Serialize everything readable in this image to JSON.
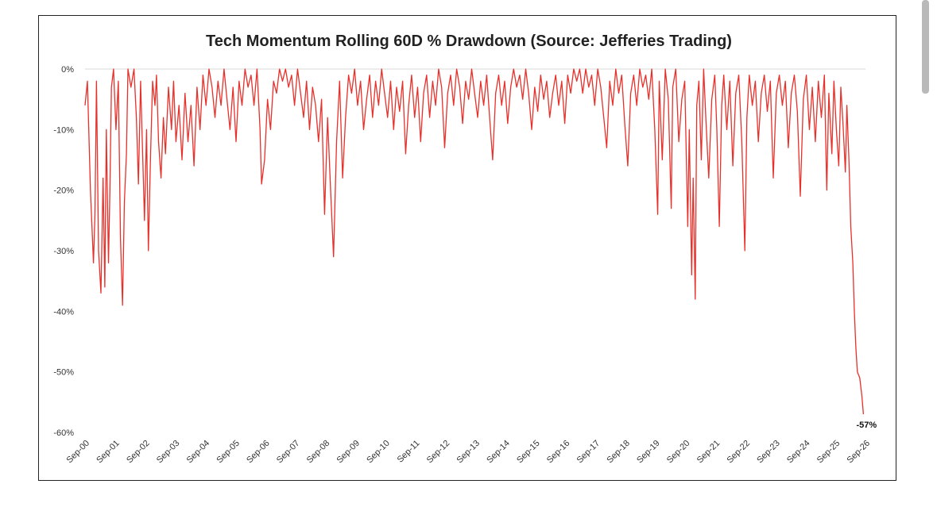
{
  "chart_data": {
    "type": "line",
    "title": "Tech Momentum Rolling 60D % Drawdown (Source: Jefferies Trading)",
    "xlabel": "",
    "ylabel": "",
    "ylim": [
      -60,
      0
    ],
    "y_ticks": [
      "0%",
      "-10%",
      "-20%",
      "-30%",
      "-40%",
      "-50%",
      "-60%"
    ],
    "y_tick_values": [
      0,
      -10,
      -20,
      -30,
      -40,
      -50,
      -60
    ],
    "x_ticks": [
      "Sep-00",
      "Sep-01",
      "Sep-02",
      "Sep-03",
      "Sep-04",
      "Sep-05",
      "Sep-06",
      "Sep-07",
      "Sep-08",
      "Sep-09",
      "Sep-10",
      "Sep-11",
      "Sep-12",
      "Sep-13",
      "Sep-14",
      "Sep-15",
      "Sep-16",
      "Sep-17",
      "Sep-18",
      "Sep-19",
      "Sep-20",
      "Sep-21",
      "Sep-22",
      "Sep-23",
      "Sep-24",
      "Sep-25",
      "Sep-26"
    ],
    "grid": false,
    "legend": "none",
    "series_color": "#e8302a",
    "x_range": [
      2000.67,
      2026.67
    ],
    "annotation": {
      "text": "-57%",
      "x": 2026.6,
      "y": -57
    },
    "series": [
      {
        "values": [
          [
            2000.67,
            -6
          ],
          [
            2000.75,
            -2
          ],
          [
            2000.85,
            -20
          ],
          [
            2000.95,
            -32
          ],
          [
            2001.0,
            -24
          ],
          [
            2001.05,
            -2
          ],
          [
            2001.12,
            -30
          ],
          [
            2001.2,
            -37
          ],
          [
            2001.27,
            -18
          ],
          [
            2001.33,
            -36
          ],
          [
            2001.38,
            -10
          ],
          [
            2001.45,
            -32
          ],
          [
            2001.5,
            -20
          ],
          [
            2001.55,
            -3
          ],
          [
            2001.62,
            0
          ],
          [
            2001.7,
            -10
          ],
          [
            2001.78,
            -2
          ],
          [
            2001.85,
            -28
          ],
          [
            2001.92,
            -39
          ],
          [
            2001.98,
            -22
          ],
          [
            2002.05,
            -14
          ],
          [
            2002.1,
            0
          ],
          [
            2002.2,
            -3
          ],
          [
            2002.3,
            0
          ],
          [
            2002.38,
            -8
          ],
          [
            2002.45,
            -19
          ],
          [
            2002.52,
            -2
          ],
          [
            2002.6,
            -16
          ],
          [
            2002.65,
            -25
          ],
          [
            2002.72,
            -10
          ],
          [
            2002.78,
            -30
          ],
          [
            2002.85,
            -15
          ],
          [
            2002.92,
            -2
          ],
          [
            2003.0,
            -6
          ],
          [
            2003.05,
            -1
          ],
          [
            2003.12,
            -12
          ],
          [
            2003.2,
            -18
          ],
          [
            2003.28,
            -8
          ],
          [
            2003.35,
            -14
          ],
          [
            2003.45,
            -3
          ],
          [
            2003.55,
            -10
          ],
          [
            2003.62,
            -2
          ],
          [
            2003.7,
            -12
          ],
          [
            2003.8,
            -6
          ],
          [
            2003.9,
            -15
          ],
          [
            2004.0,
            -4
          ],
          [
            2004.1,
            -12
          ],
          [
            2004.2,
            -6
          ],
          [
            2004.3,
            -16
          ],
          [
            2004.4,
            -3
          ],
          [
            2004.5,
            -10
          ],
          [
            2004.6,
            -1
          ],
          [
            2004.7,
            -6
          ],
          [
            2004.8,
            0
          ],
          [
            2004.9,
            -3
          ],
          [
            2005.0,
            -8
          ],
          [
            2005.1,
            -2
          ],
          [
            2005.2,
            -6
          ],
          [
            2005.3,
            0
          ],
          [
            2005.4,
            -5
          ],
          [
            2005.5,
            -10
          ],
          [
            2005.6,
            -3
          ],
          [
            2005.7,
            -12
          ],
          [
            2005.8,
            -2
          ],
          [
            2005.9,
            -6
          ],
          [
            2006.0,
            0
          ],
          [
            2006.1,
            -3
          ],
          [
            2006.2,
            -1
          ],
          [
            2006.3,
            -6
          ],
          [
            2006.4,
            0
          ],
          [
            2006.5,
            -10
          ],
          [
            2006.55,
            -19
          ],
          [
            2006.65,
            -15
          ],
          [
            2006.75,
            -5
          ],
          [
            2006.85,
            -10
          ],
          [
            2006.95,
            -2
          ],
          [
            2007.05,
            -4
          ],
          [
            2007.15,
            0
          ],
          [
            2007.25,
            -2
          ],
          [
            2007.35,
            0
          ],
          [
            2007.45,
            -3
          ],
          [
            2007.55,
            -1
          ],
          [
            2007.65,
            -6
          ],
          [
            2007.75,
            0
          ],
          [
            2007.85,
            -4
          ],
          [
            2007.95,
            -8
          ],
          [
            2008.05,
            -2
          ],
          [
            2008.15,
            -10
          ],
          [
            2008.25,
            -3
          ],
          [
            2008.35,
            -6
          ],
          [
            2008.45,
            -12
          ],
          [
            2008.55,
            -5
          ],
          [
            2008.65,
            -24
          ],
          [
            2008.75,
            -8
          ],
          [
            2008.85,
            -20
          ],
          [
            2008.95,
            -31
          ],
          [
            2009.05,
            -12
          ],
          [
            2009.15,
            -2
          ],
          [
            2009.25,
            -18
          ],
          [
            2009.35,
            -8
          ],
          [
            2009.45,
            -1
          ],
          [
            2009.55,
            -4
          ],
          [
            2009.65,
            0
          ],
          [
            2009.75,
            -6
          ],
          [
            2009.85,
            -2
          ],
          [
            2009.95,
            -10
          ],
          [
            2010.05,
            -5
          ],
          [
            2010.15,
            -1
          ],
          [
            2010.25,
            -8
          ],
          [
            2010.35,
            -2
          ],
          [
            2010.45,
            -6
          ],
          [
            2010.55,
            0
          ],
          [
            2010.65,
            -4
          ],
          [
            2010.75,
            -8
          ],
          [
            2010.85,
            -2
          ],
          [
            2010.95,
            -10
          ],
          [
            2011.05,
            -3
          ],
          [
            2011.15,
            -7
          ],
          [
            2011.25,
            -2
          ],
          [
            2011.35,
            -14
          ],
          [
            2011.45,
            -6
          ],
          [
            2011.55,
            -1
          ],
          [
            2011.65,
            -8
          ],
          [
            2011.75,
            -3
          ],
          [
            2011.85,
            -12
          ],
          [
            2011.95,
            -4
          ],
          [
            2012.05,
            -1
          ],
          [
            2012.15,
            -8
          ],
          [
            2012.25,
            -2
          ],
          [
            2012.35,
            -6
          ],
          [
            2012.45,
            0
          ],
          [
            2012.55,
            -3
          ],
          [
            2012.65,
            -13
          ],
          [
            2012.75,
            -4
          ],
          [
            2012.85,
            -1
          ],
          [
            2012.95,
            -6
          ],
          [
            2013.05,
            0
          ],
          [
            2013.15,
            -3
          ],
          [
            2013.25,
            -9
          ],
          [
            2013.35,
            -2
          ],
          [
            2013.45,
            -5
          ],
          [
            2013.55,
            0
          ],
          [
            2013.65,
            -4
          ],
          [
            2013.75,
            -8
          ],
          [
            2013.85,
            -2
          ],
          [
            2013.95,
            -6
          ],
          [
            2014.05,
            -1
          ],
          [
            2014.15,
            -8
          ],
          [
            2014.25,
            -15
          ],
          [
            2014.35,
            -4
          ],
          [
            2014.45,
            -1
          ],
          [
            2014.55,
            -6
          ],
          [
            2014.65,
            -2
          ],
          [
            2014.75,
            -9
          ],
          [
            2014.85,
            -3
          ],
          [
            2014.95,
            0
          ],
          [
            2015.05,
            -3
          ],
          [
            2015.15,
            -1
          ],
          [
            2015.25,
            -5
          ],
          [
            2015.35,
            0
          ],
          [
            2015.45,
            -4
          ],
          [
            2015.55,
            -10
          ],
          [
            2015.65,
            -3
          ],
          [
            2015.75,
            -7
          ],
          [
            2015.85,
            -1
          ],
          [
            2015.95,
            -5
          ],
          [
            2016.05,
            -2
          ],
          [
            2016.15,
            -8
          ],
          [
            2016.25,
            -4
          ],
          [
            2016.35,
            -1
          ],
          [
            2016.45,
            -6
          ],
          [
            2016.55,
            -2
          ],
          [
            2016.65,
            -9
          ],
          [
            2016.75,
            -1
          ],
          [
            2016.85,
            -4
          ],
          [
            2016.95,
            0
          ],
          [
            2017.05,
            -2
          ],
          [
            2017.15,
            0
          ],
          [
            2017.25,
            -4
          ],
          [
            2017.35,
            0
          ],
          [
            2017.45,
            -3
          ],
          [
            2017.55,
            -1
          ],
          [
            2017.65,
            -6
          ],
          [
            2017.75,
            0
          ],
          [
            2017.85,
            -3
          ],
          [
            2017.95,
            -8
          ],
          [
            2018.05,
            -13
          ],
          [
            2018.15,
            -2
          ],
          [
            2018.25,
            -6
          ],
          [
            2018.35,
            0
          ],
          [
            2018.45,
            -4
          ],
          [
            2018.55,
            -1
          ],
          [
            2018.65,
            -9
          ],
          [
            2018.75,
            -16
          ],
          [
            2018.85,
            -4
          ],
          [
            2018.95,
            -1
          ],
          [
            2019.05,
            -6
          ],
          [
            2019.15,
            0
          ],
          [
            2019.25,
            -3
          ],
          [
            2019.35,
            -1
          ],
          [
            2019.45,
            -5
          ],
          [
            2019.55,
            0
          ],
          [
            2019.65,
            -10
          ],
          [
            2019.75,
            -24
          ],
          [
            2019.8,
            -2
          ],
          [
            2019.9,
            -15
          ],
          [
            2020.0,
            0
          ],
          [
            2020.1,
            -5
          ],
          [
            2020.2,
            -23
          ],
          [
            2020.25,
            -3
          ],
          [
            2020.35,
            0
          ],
          [
            2020.45,
            -12
          ],
          [
            2020.55,
            -5
          ],
          [
            2020.65,
            -2
          ],
          [
            2020.75,
            -26
          ],
          [
            2020.8,
            -10
          ],
          [
            2020.88,
            -34
          ],
          [
            2020.93,
            -18
          ],
          [
            2021.0,
            -38
          ],
          [
            2021.05,
            -6
          ],
          [
            2021.12,
            -2
          ],
          [
            2021.2,
            -15
          ],
          [
            2021.28,
            0
          ],
          [
            2021.35,
            -8
          ],
          [
            2021.45,
            -18
          ],
          [
            2021.55,
            -5
          ],
          [
            2021.65,
            -1
          ],
          [
            2021.72,
            -10
          ],
          [
            2021.8,
            -26
          ],
          [
            2021.88,
            -6
          ],
          [
            2021.95,
            -1
          ],
          [
            2022.05,
            -10
          ],
          [
            2022.15,
            -2
          ],
          [
            2022.25,
            -16
          ],
          [
            2022.35,
            -4
          ],
          [
            2022.45,
            -1
          ],
          [
            2022.55,
            -12
          ],
          [
            2022.65,
            -30
          ],
          [
            2022.72,
            -8
          ],
          [
            2022.8,
            -1
          ],
          [
            2022.9,
            -6
          ],
          [
            2023.0,
            -2
          ],
          [
            2023.1,
            -12
          ],
          [
            2023.2,
            -4
          ],
          [
            2023.3,
            -1
          ],
          [
            2023.4,
            -7
          ],
          [
            2023.5,
            -2
          ],
          [
            2023.6,
            -18
          ],
          [
            2023.7,
            -4
          ],
          [
            2023.8,
            -1
          ],
          [
            2023.9,
            -6
          ],
          [
            2024.0,
            -2
          ],
          [
            2024.1,
            -13
          ],
          [
            2024.2,
            -4
          ],
          [
            2024.3,
            -1
          ],
          [
            2024.4,
            -7
          ],
          [
            2024.5,
            -21
          ],
          [
            2024.6,
            -5
          ],
          [
            2024.7,
            -1
          ],
          [
            2024.8,
            -10
          ],
          [
            2024.9,
            -3
          ],
          [
            2025.0,
            -12
          ],
          [
            2025.1,
            -2
          ],
          [
            2025.2,
            -8
          ],
          [
            2025.3,
            -1
          ],
          [
            2025.38,
            -20
          ],
          [
            2025.45,
            -4
          ],
          [
            2025.55,
            -14
          ],
          [
            2025.62,
            -2
          ],
          [
            2025.7,
            -10
          ],
          [
            2025.78,
            -16
          ],
          [
            2025.85,
            -3
          ],
          [
            2025.92,
            -9
          ],
          [
            2026.0,
            -17
          ],
          [
            2026.05,
            -6
          ],
          [
            2026.12,
            -15
          ],
          [
            2026.18,
            -26
          ],
          [
            2026.25,
            -32
          ],
          [
            2026.3,
            -40
          ],
          [
            2026.35,
            -46
          ],
          [
            2026.4,
            -50
          ],
          [
            2026.48,
            -51
          ],
          [
            2026.55,
            -54
          ],
          [
            2026.6,
            -57
          ]
        ]
      }
    ]
  }
}
